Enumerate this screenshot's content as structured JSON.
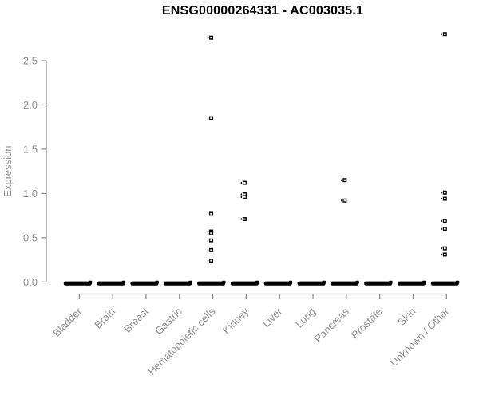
{
  "page": {
    "background": "#ffffff"
  },
  "chart_data": {
    "type": "scatter",
    "title": "ENSG00000264331 - AC003035.1",
    "ylabel": "Expression",
    "xlabel": "",
    "yticks": [
      "0.0",
      "0.5",
      "1.0",
      "1.5",
      "2.0",
      "2.5"
    ],
    "ylim": [
      0,
      2.85
    ],
    "grid": false,
    "legend": false,
    "point_shape": "small-open-square",
    "categories": [
      "Bladder",
      "Brain",
      "Breast",
      "Gastric",
      "Hematopoietic cells",
      "Kidney",
      "Liver",
      "Lung",
      "Pancreas",
      "Prostate",
      "Skin",
      "Unknown / Other"
    ],
    "series": [
      {
        "category": "Bladder",
        "values": []
      },
      {
        "category": "Brain",
        "values": []
      },
      {
        "category": "Breast",
        "values": []
      },
      {
        "category": "Gastric",
        "values": []
      },
      {
        "category": "Hematopoietic cells",
        "values": [
          2.76,
          1.85,
          0.77,
          0.57,
          0.55,
          0.47,
          0.36,
          0.24
        ]
      },
      {
        "category": "Kidney",
        "values": [
          1.12,
          0.99,
          0.96,
          0.71
        ]
      },
      {
        "category": "Liver",
        "values": []
      },
      {
        "category": "Lung",
        "values": []
      },
      {
        "category": "Pancreas",
        "values": [
          1.15,
          0.92
        ]
      },
      {
        "category": "Prostate",
        "values": []
      },
      {
        "category": "Skin",
        "values": []
      },
      {
        "category": "Unknown / Other",
        "values": [
          2.8,
          1.01,
          0.94,
          0.69,
          0.6,
          0.38,
          0.31
        ]
      }
    ],
    "zero_cluster_all_categories": true,
    "zero_cluster_note": "every category shows a dense horizontal bar of overlapping points at expression 0",
    "colors": {
      "points": "#000000",
      "axis_line": "#888888",
      "axis_text": "#8e8e8e",
      "title": "#000000",
      "background": "#ffffff"
    }
  }
}
